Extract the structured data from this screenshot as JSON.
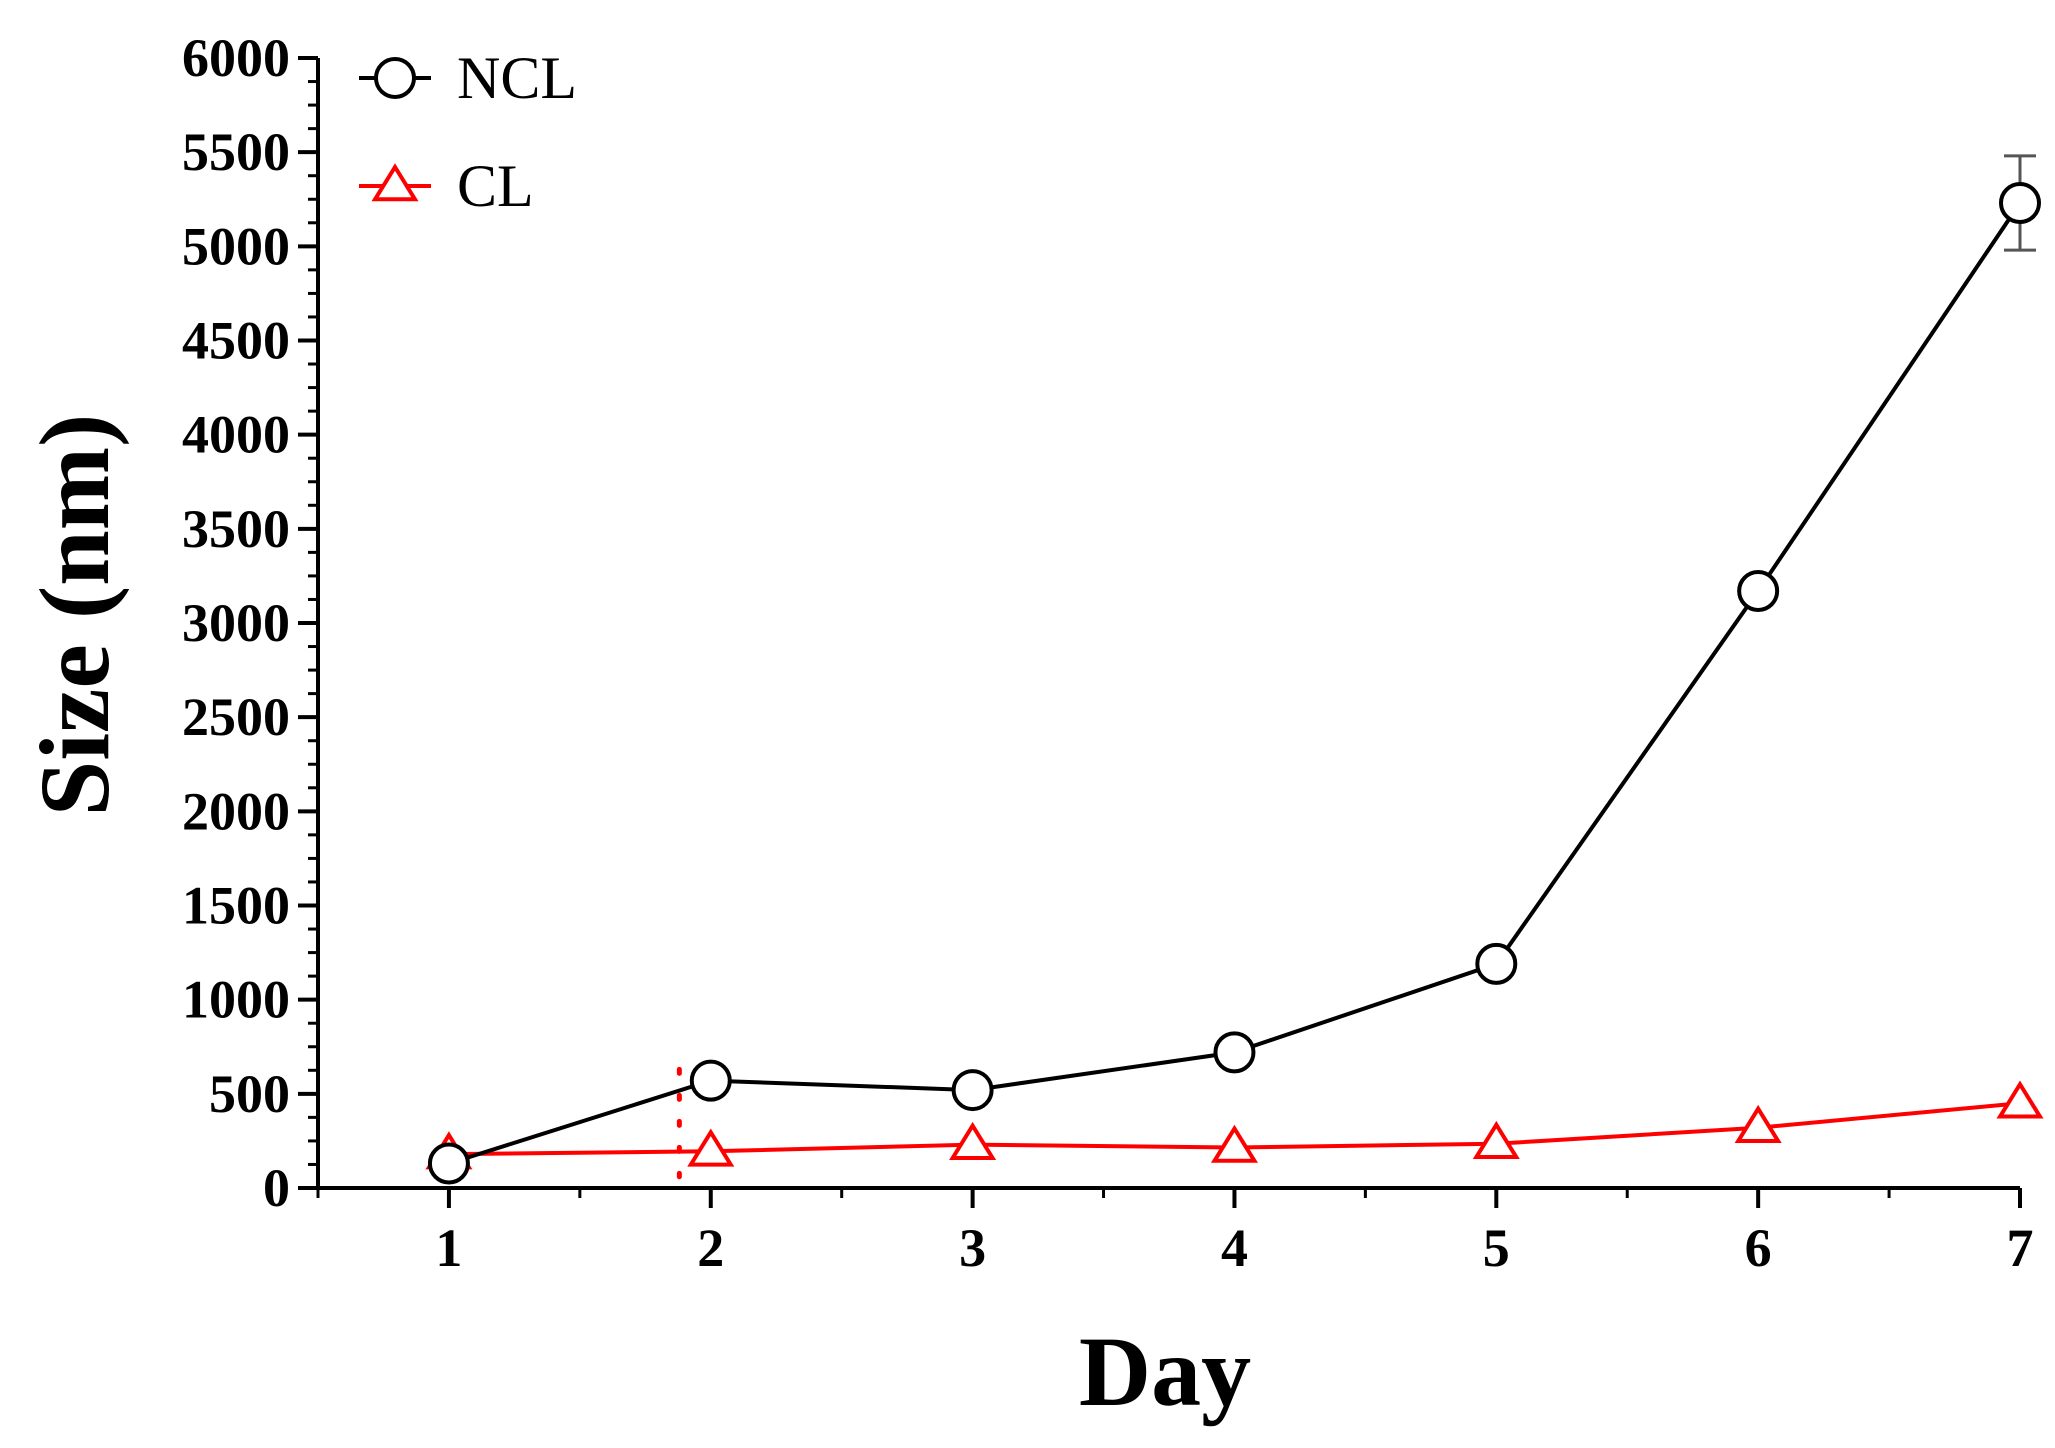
{
  "chart_data": {
    "type": "line",
    "title": "",
    "xlabel": "Day",
    "ylabel": "Size (nm)",
    "x": [
      1,
      2,
      3,
      4,
      5,
      6,
      7
    ],
    "xlim": [
      0.5,
      7
    ],
    "ylim": [
      0,
      6000
    ],
    "x_ticks": [
      1,
      2,
      3,
      4,
      5,
      6,
      7
    ],
    "y_ticks": [
      0,
      500,
      1000,
      1500,
      2000,
      2500,
      3000,
      3500,
      4000,
      4500,
      5000,
      5500,
      6000
    ],
    "grid": false,
    "legend_position": "top-left",
    "series": [
      {
        "name": "NCL",
        "color": "#000000",
        "marker": "circle",
        "values": [
          130,
          570,
          520,
          720,
          1190,
          3170,
          5230
        ],
        "error": [
          0,
          0,
          0,
          0,
          0,
          0,
          250
        ]
      },
      {
        "name": "CL",
        "color": "#ff0000",
        "marker": "triangle",
        "values": [
          180,
          195,
          230,
          215,
          235,
          320,
          450
        ],
        "error": [
          0,
          0,
          0,
          0,
          0,
          0,
          0
        ]
      }
    ],
    "annotations": [
      {
        "type": "vertical-dotted-line",
        "x": 1.88,
        "y_range": [
          60,
          630
        ],
        "color": "#ff0000"
      }
    ]
  }
}
